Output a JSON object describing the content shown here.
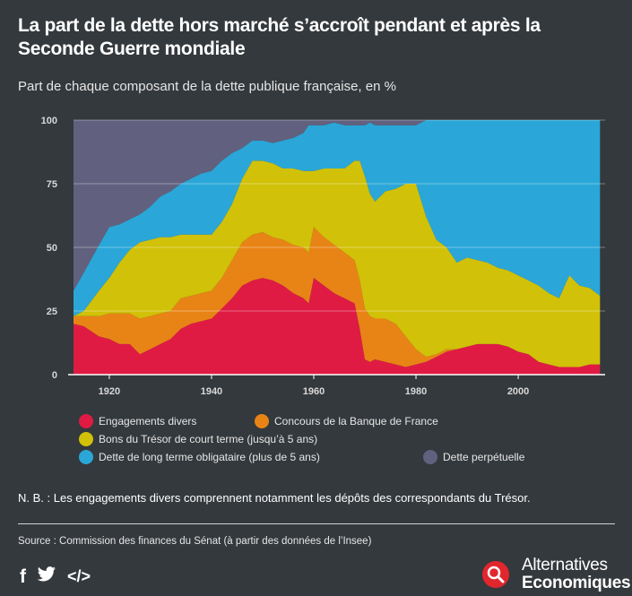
{
  "header": {
    "title": "La part de la dette hors marché s’accroît pendant et après la Seconde Guerre mondiale",
    "subtitle": "Part de chaque composant de la dette publique française, en %"
  },
  "chart_data": {
    "type": "area",
    "stacked": true,
    "xlim": [
      1913,
      2017
    ],
    "ylim": [
      0,
      100
    ],
    "x_ticks": [
      1920,
      1940,
      1960,
      1980,
      2000
    ],
    "y_ticks": [
      0,
      25,
      50,
      75,
      100
    ],
    "grid": "horizontal",
    "legend_position": "bottom",
    "x": [
      1913,
      1915,
      1918,
      1920,
      1922,
      1924,
      1926,
      1928,
      1930,
      1932,
      1934,
      1936,
      1938,
      1940,
      1942,
      1944,
      1946,
      1948,
      1950,
      1952,
      1954,
      1956,
      1958,
      1959,
      1960,
      1962,
      1964,
      1966,
      1968,
      1969,
      1970,
      1971,
      1972,
      1974,
      1976,
      1978,
      1980,
      1982,
      1984,
      1986,
      1988,
      1990,
      1992,
      1994,
      1996,
      1998,
      2000,
      2002,
      2004,
      2006,
      2008,
      2010,
      2012,
      2014,
      2016
    ],
    "series": [
      {
        "name": "Engagements divers",
        "color": "#df1b44",
        "values": [
          20,
          19,
          15,
          14,
          12,
          12,
          8,
          10,
          12,
          14,
          18,
          20,
          21,
          22,
          26,
          30,
          35,
          37,
          38,
          37,
          35,
          32,
          30,
          28,
          38,
          35,
          32,
          30,
          28,
          18,
          6,
          5,
          6,
          5,
          4,
          3,
          4,
          5,
          7,
          9,
          10,
          11,
          12,
          12,
          12,
          11,
          9,
          8,
          5,
          4,
          3,
          3,
          3,
          4,
          4
        ]
      },
      {
        "name": "Concours de la Banque de France",
        "color": "#e88416",
        "values": [
          3,
          4,
          8,
          10,
          12,
          12,
          14,
          13,
          12,
          11,
          12,
          11,
          11,
          11,
          12,
          15,
          17,
          18,
          18,
          17,
          18,
          19,
          20,
          20,
          20,
          19,
          19,
          18,
          17,
          19,
          20,
          18,
          16,
          17,
          16,
          12,
          6,
          2,
          1,
          1,
          0,
          0,
          0,
          0,
          0,
          0,
          0,
          0,
          0,
          0,
          0,
          0,
          0,
          0,
          0
        ]
      },
      {
        "name": "Bons du Trésor de court terme (jusqu’à 5 ans)",
        "color": "#d1c108",
        "values": [
          0,
          2,
          10,
          14,
          20,
          25,
          30,
          30,
          30,
          29,
          25,
          24,
          23,
          22,
          22,
          22,
          25,
          29,
          28,
          29,
          28,
          30,
          30,
          32,
          22,
          27,
          30,
          33,
          39,
          47,
          52,
          48,
          46,
          50,
          53,
          60,
          65,
          55,
          45,
          40,
          34,
          35,
          33,
          32,
          30,
          30,
          30,
          29,
          30,
          28,
          27,
          36,
          32,
          30,
          27
        ]
      },
      {
        "name": "Dette de long terme obligataire (plus de 5 ans)",
        "color": "#2aa7d8",
        "values": [
          10,
          15,
          18,
          20,
          15,
          12,
          11,
          13,
          16,
          18,
          20,
          22,
          24,
          25,
          24,
          20,
          12,
          8,
          8,
          8,
          11,
          12,
          15,
          18,
          18,
          17,
          18,
          17,
          14,
          14,
          20,
          28,
          30,
          26,
          25,
          23,
          23,
          38,
          47,
          50,
          56,
          54,
          55,
          56,
          58,
          59,
          61,
          63,
          65,
          68,
          70,
          61,
          65,
          66,
          69
        ]
      },
      {
        "name": "Dette perpétuelle",
        "color": "#61617f",
        "values": [
          67,
          60,
          49,
          42,
          41,
          39,
          37,
          34,
          30,
          28,
          25,
          23,
          21,
          20,
          16,
          13,
          11,
          8,
          8,
          9,
          8,
          7,
          5,
          2,
          2,
          2,
          1,
          2,
          2,
          2,
          2,
          1,
          2,
          2,
          2,
          2,
          2,
          0,
          0,
          0,
          0,
          0,
          0,
          0,
          0,
          0,
          0,
          0,
          0,
          0,
          0,
          0,
          0,
          0,
          0
        ]
      }
    ]
  },
  "legend": {
    "items": [
      {
        "label": "Engagements divers",
        "color": "#df1b44"
      },
      {
        "label": "Concours de la Banque de France",
        "color": "#e88416"
      },
      {
        "label": "Bons du Trésor de court terme (jusqu’à 5 ans)",
        "color": "#d1c108"
      },
      {
        "label": "Dette de long terme obligataire (plus de 5 ans)",
        "color": "#2aa7d8"
      },
      {
        "label": "Dette perpétuelle",
        "color": "#61617f"
      }
    ]
  },
  "footer": {
    "note": "N. B. : Les engagements divers comprennent notamment les dépôts des correspondants du Trésor.",
    "source": "Source : Commission des finances du Sénat (à partir des données de l’Insee)",
    "social": {
      "facebook": "f",
      "embed": "</>",
      "facebook_icon": "facebook-icon",
      "twitter_icon": "twitter-icon",
      "embed_icon": "embed-code-icon"
    },
    "logo": {
      "line1": "Alternatives",
      "line2": "Economiques",
      "icon": "magnifier-icon"
    }
  }
}
